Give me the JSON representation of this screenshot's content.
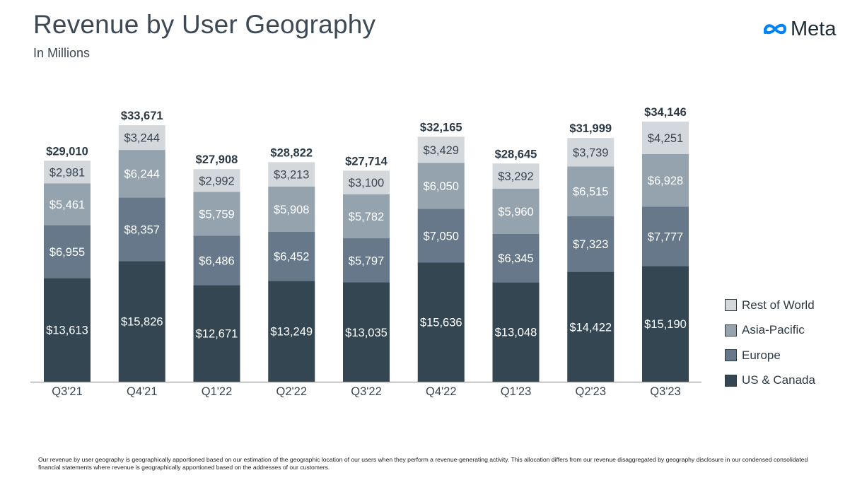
{
  "header": {
    "title": "Revenue by User Geography",
    "subtitle": "In Millions",
    "logo_text": "Meta"
  },
  "colors": {
    "us_canada": "#344651",
    "europe": "#66788a",
    "asia_pacific": "#95a3ae",
    "rest_of_world": "#d2d8dc",
    "text_dark": "#2c3a45",
    "axis": "#999999",
    "logo_blue": "#0082fb"
  },
  "legend": [
    {
      "label": "Rest of World",
      "color": "#d2d8dc"
    },
    {
      "label": "Asia-Pacific",
      "color": "#95a3ae"
    },
    {
      "label": "Europe",
      "color": "#66788a"
    },
    {
      "label": "US & Canada",
      "color": "#344651"
    }
  ],
  "chart_data": {
    "type": "bar",
    "stacked": true,
    "title": "Revenue by User Geography",
    "subtitle": "In Millions",
    "categories": [
      "Q3'21",
      "Q4'21",
      "Q1'22",
      "Q2'22",
      "Q3'22",
      "Q4'22",
      "Q1'23",
      "Q2'23",
      "Q3'23"
    ],
    "series": [
      {
        "name": "US & Canada",
        "values": [
          13613,
          15826,
          12671,
          13249,
          13035,
          15636,
          13048,
          14422,
          15190
        ],
        "labels": [
          "$13,613",
          "$15,826",
          "$12,671",
          "$13,249",
          "$13,035",
          "$15,636",
          "$13,048",
          "$14,422",
          "$15,190"
        ],
        "color": "#344651"
      },
      {
        "name": "Europe",
        "values": [
          6955,
          8357,
          6486,
          6452,
          5797,
          7050,
          6345,
          7323,
          7777
        ],
        "labels": [
          "$6,955",
          "$8,357",
          "$6,486",
          "$6,452",
          "$5,797",
          "$7,050",
          "$6,345",
          "$7,323",
          "$7,777"
        ],
        "color": "#66788a"
      },
      {
        "name": "Asia-Pacific",
        "values": [
          5461,
          6244,
          5759,
          5908,
          5782,
          6050,
          5960,
          6515,
          6928
        ],
        "labels": [
          "$5,461",
          "$6,244",
          "$5,759",
          "$5,908",
          "$5,782",
          "$6,050",
          "$5,960",
          "$6,515",
          "$6,928"
        ],
        "color": "#95a3ae"
      },
      {
        "name": "Rest of World",
        "values": [
          2981,
          3244,
          2992,
          3213,
          3100,
          3429,
          3292,
          3739,
          4251
        ],
        "labels": [
          "$2,981",
          "$3,244",
          "$2,992",
          "$3,213",
          "$3,100",
          "$3,429",
          "$3,292",
          "$3,739",
          "$4,251"
        ],
        "color": "#d2d8dc"
      }
    ],
    "totals": [
      29010,
      33671,
      27908,
      28822,
      27714,
      32165,
      28645,
      31999,
      34146
    ],
    "total_labels": [
      "$29,010",
      "$33,671",
      "$27,908",
      "$28,822",
      "$27,714",
      "$32,165",
      "$28,645",
      "$31,999",
      "$34,146"
    ],
    "ylim": [
      0,
      34146
    ],
    "legend_position": "right",
    "grid": false
  },
  "footnote": "Our revenue by user geography is geographically apportioned based on our estimation of the geographic location of our users when they perform a revenue-generating activity. This allocation differs from our revenue disaggregated by geography disclosure in our condensed consolidated financial statements where revenue is geographically apportioned based on the addresses of our customers."
}
